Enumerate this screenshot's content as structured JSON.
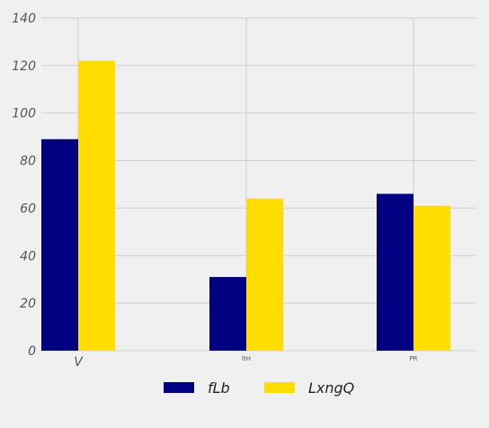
{
  "chart_data": {
    "type": "bar",
    "categories": [
      "V",
      "ltH",
      "PR"
    ],
    "series": [
      {
        "name": "fLb",
        "values": [
          89,
          31,
          66
        ],
        "color": "#000080"
      },
      {
        "name": "LxngQ",
        "values": [
          122,
          64,
          61
        ],
        "color": "#ffdd00"
      }
    ],
    "ylim": [
      0,
      140
    ],
    "yticks": [
      0,
      20,
      40,
      60,
      80,
      100,
      120,
      140
    ],
    "grid": true,
    "legend_position": "bottom-center",
    "title": "",
    "xlabel": "",
    "ylabel": ""
  }
}
